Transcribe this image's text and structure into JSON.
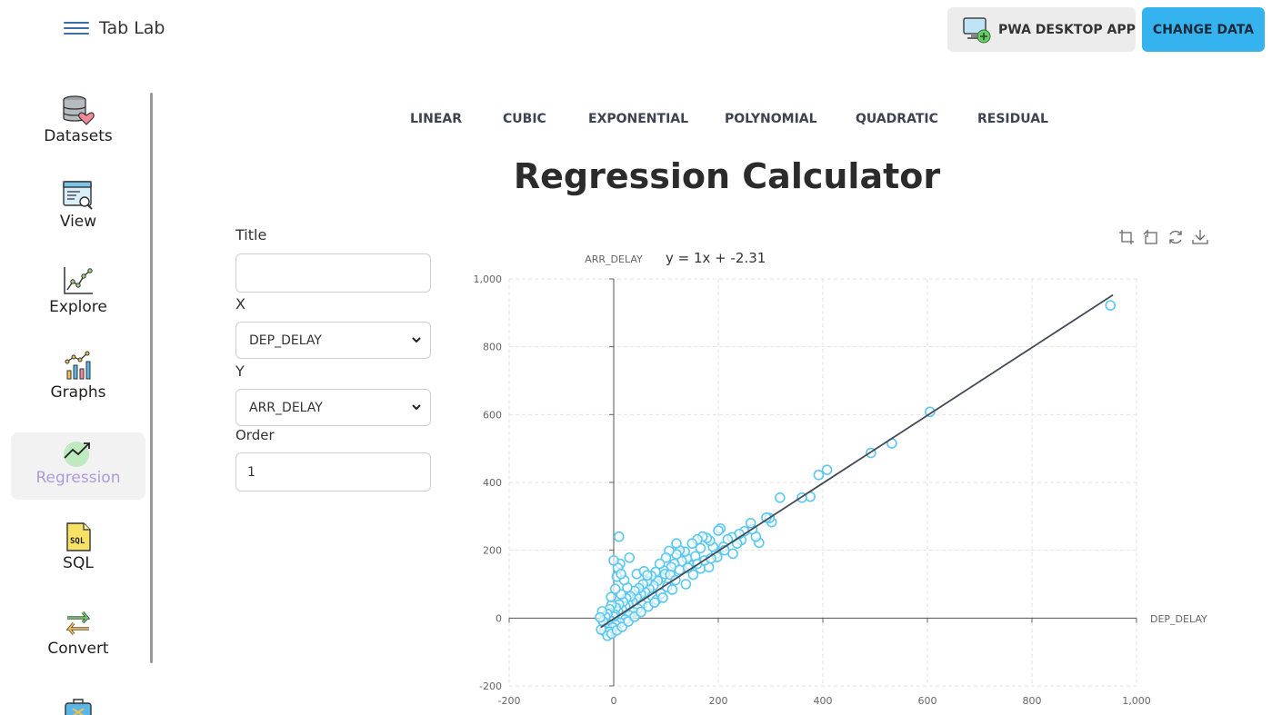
{
  "header": {
    "brand": "Tab Lab",
    "menu_icon": "hamburger-menu-icon",
    "pwa_button": "PWA DESKTOP APP",
    "change_data_button": "CHANGE DATA",
    "colors": {
      "primary": "#35b3ef",
      "accent_purple": "#b09ad8"
    }
  },
  "sidebar": {
    "items": [
      {
        "label": "Datasets",
        "icon": "database-heart-icon"
      },
      {
        "label": "View",
        "icon": "window-search-icon"
      },
      {
        "label": "Explore",
        "icon": "line-chart-icon"
      },
      {
        "label": "Graphs",
        "icon": "bar-chart-icon"
      },
      {
        "label": "Regression",
        "icon": "trend-up-icon",
        "active": true
      },
      {
        "label": "SQL",
        "icon": "sql-file-icon"
      },
      {
        "label": "Convert",
        "icon": "convert-arrows-icon"
      }
    ]
  },
  "tabs": [
    {
      "label": "LINEAR"
    },
    {
      "label": "CUBIC"
    },
    {
      "label": "EXPONENTIAL"
    },
    {
      "label": "POLYNOMIAL"
    },
    {
      "label": "QUADRATIC"
    },
    {
      "label": "RESIDUAL"
    }
  ],
  "page_title": "Regression Calculator",
  "form": {
    "title_label": "Title",
    "title_value": "",
    "x_label": "X",
    "x_selected": "DEP_DELAY",
    "y_label": "Y",
    "y_selected": "ARR_DELAY",
    "order_label": "Order",
    "order_value": "1"
  },
  "toolbox": [
    "zoom-icon",
    "zoom-reset-icon",
    "restore-icon",
    "download-icon"
  ],
  "chart_data": {
    "type": "scatter",
    "equation": "y = 1x + -2.31",
    "xlabel": "DEP_DELAY",
    "ylabel": "ARR_DELAY",
    "xlim": [
      -200,
      1000
    ],
    "ylim": [
      -200,
      1000
    ],
    "x_ticks": [
      "-200",
      "0",
      "200",
      "400",
      "600",
      "800",
      "1,000"
    ],
    "y_ticks": [
      "-200",
      "0",
      "200",
      "400",
      "600",
      "800",
      "1,000"
    ],
    "grid": true,
    "point_color": "#5ac8f0",
    "fit_line": {
      "slope": 1,
      "intercept": -2.31,
      "x_range": [
        -25,
        955
      ],
      "color": "#444a55"
    },
    "series": [
      {
        "values": [
          [
            950,
            922
          ],
          [
            605,
            608
          ],
          [
            532,
            515
          ],
          [
            492,
            487
          ],
          [
            408,
            437
          ],
          [
            392,
            422
          ],
          [
            376,
            358
          ],
          [
            360,
            355
          ],
          [
            318,
            355
          ],
          [
            302,
            283
          ],
          [
            298,
            295
          ],
          [
            292,
            296
          ],
          [
            278,
            222
          ],
          [
            272,
            240
          ],
          [
            265,
            262
          ],
          [
            262,
            280
          ],
          [
            250,
            256
          ],
          [
            244,
            230
          ],
          [
            240,
            248
          ],
          [
            236,
            220
          ],
          [
            226,
            238
          ],
          [
            218,
            232
          ],
          [
            210,
            210
          ],
          [
            204,
            264
          ],
          [
            200,
            258
          ],
          [
            196,
            190
          ],
          [
            190,
            210
          ],
          [
            184,
            228
          ],
          [
            178,
            236
          ],
          [
            170,
            240
          ],
          [
            166,
            206
          ],
          [
            160,
            232
          ],
          [
            156,
            182
          ],
          [
            150,
            220
          ],
          [
            146,
            156
          ],
          [
            140,
            176
          ],
          [
            136,
            196
          ],
          [
            130,
            168
          ],
          [
            126,
            200
          ],
          [
            120,
            188
          ],
          [
            116,
            160
          ],
          [
            110,
            150
          ],
          [
            106,
            198
          ],
          [
            100,
            178
          ],
          [
            96,
            140
          ],
          [
            92,
            120
          ],
          [
            88,
            160
          ],
          [
            84,
            110
          ],
          [
            80,
            136
          ],
          [
            76,
            96
          ],
          [
            72,
            124
          ],
          [
            68,
            86
          ],
          [
            64,
            108
          ],
          [
            60,
            76
          ],
          [
            56,
            100
          ],
          [
            52,
            70
          ],
          [
            48,
            88
          ],
          [
            44,
            60
          ],
          [
            40,
            80
          ],
          [
            36,
            48
          ],
          [
            32,
            64
          ],
          [
            28,
            40
          ],
          [
            26,
            90
          ],
          [
            24,
            58
          ],
          [
            22,
            34
          ],
          [
            20,
            112
          ],
          [
            18,
            48
          ],
          [
            16,
            24
          ],
          [
            14,
            70
          ],
          [
            12,
            160
          ],
          [
            10,
            40
          ],
          [
            8,
            20
          ],
          [
            6,
            122
          ],
          [
            4,
            30
          ],
          [
            2,
            10
          ],
          [
            0,
            4
          ],
          [
            -4,
            40
          ],
          [
            -6,
            -8
          ],
          [
            -8,
            26
          ],
          [
            -10,
            -18
          ],
          [
            -12,
            12
          ],
          [
            -14,
            -30
          ],
          [
            -16,
            4
          ],
          [
            -18,
            -38
          ],
          [
            -20,
            -10
          ],
          [
            -22,
            20
          ],
          [
            -24,
            -34
          ],
          [
            -26,
            2
          ],
          [
            -5,
            62
          ],
          [
            3,
            86
          ],
          [
            8,
            148
          ],
          [
            14,
            130
          ],
          [
            30,
            178
          ],
          [
            10,
            240
          ],
          [
            0,
            170
          ],
          [
            44,
            130
          ],
          [
            58,
            138
          ],
          [
            64,
            126
          ],
          [
            120,
            220
          ],
          [
            98,
            130
          ],
          [
            108,
            128
          ],
          [
            138,
            100
          ],
          [
            152,
            128
          ],
          [
            166,
            146
          ],
          [
            182,
            150
          ],
          [
            198,
            180
          ],
          [
            212,
            200
          ],
          [
            228,
            190
          ],
          [
            118,
            112
          ],
          [
            126,
            142
          ],
          [
            142,
            148
          ],
          [
            160,
            160
          ],
          [
            174,
            170
          ],
          [
            186,
            176
          ],
          [
            74,
            64
          ],
          [
            82,
            54
          ],
          [
            90,
            72
          ],
          [
            102,
            92
          ],
          [
            112,
            84
          ],
          [
            54,
            40
          ],
          [
            46,
            28
          ],
          [
            38,
            18
          ],
          [
            30,
            8
          ],
          [
            22,
            -4
          ],
          [
            12,
            -14
          ],
          [
            4,
            -20
          ],
          [
            -2,
            -28
          ],
          [
            -8,
            -40
          ],
          [
            -12,
            -52
          ],
          [
            -4,
            -46
          ],
          [
            6,
            -36
          ],
          [
            16,
            -26
          ],
          [
            28,
            -10
          ],
          [
            40,
            4
          ],
          [
            52,
            18
          ],
          [
            66,
            34
          ],
          [
            78,
            46
          ],
          [
            94,
            60
          ]
        ]
      }
    ]
  }
}
